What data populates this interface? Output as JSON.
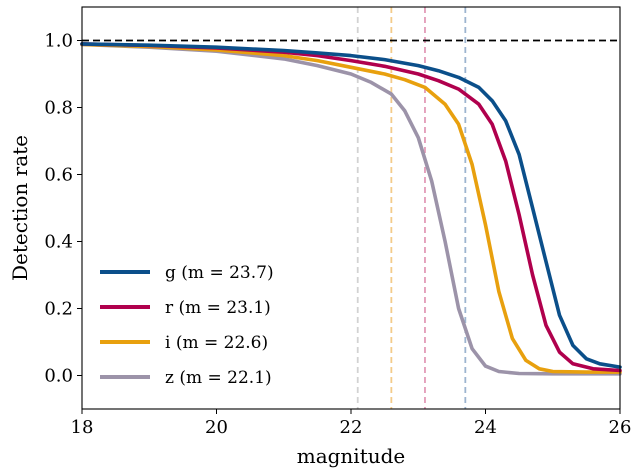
{
  "chart_data": {
    "type": "line",
    "xlabel": "magnitude",
    "ylabel": "Detection rate",
    "xlim": [
      18,
      26
    ],
    "ylim": [
      -0.1,
      1.1
    ],
    "xticks": [
      18,
      20,
      22,
      24,
      26
    ],
    "yticks": [
      0.0,
      0.2,
      0.4,
      0.6,
      0.8,
      1.0
    ],
    "xtick_labels": [
      "18",
      "20",
      "22",
      "24",
      "26"
    ],
    "ytick_labels": [
      "0.0",
      "0.2",
      "0.4",
      "0.6",
      "0.8",
      "1.0"
    ],
    "grid": false,
    "legend_position": "lower-left",
    "reference_line": {
      "y": 1.0,
      "style": "dashed",
      "color": "#000000"
    },
    "series": [
      {
        "name": "g (m = 23.7)",
        "color": "#0b4f8a",
        "limit_color": "#9db4cf",
        "limit": 23.7,
        "x": [
          18,
          19,
          20,
          21,
          21.5,
          22,
          22.5,
          23,
          23.3,
          23.6,
          23.9,
          24.1,
          24.3,
          24.5,
          24.7,
          24.9,
          25.1,
          25.3,
          25.5,
          25.7,
          26
        ],
        "y": [
          0.99,
          0.986,
          0.98,
          0.97,
          0.963,
          0.955,
          0.943,
          0.925,
          0.91,
          0.89,
          0.86,
          0.82,
          0.76,
          0.66,
          0.5,
          0.34,
          0.18,
          0.09,
          0.05,
          0.035,
          0.025
        ]
      },
      {
        "name": "r (m = 23.1)",
        "color": "#b0004d",
        "limit_color": "#e29bb8",
        "limit": 23.1,
        "x": [
          18,
          19,
          20,
          21,
          21.5,
          22,
          22.5,
          23,
          23.3,
          23.6,
          23.9,
          24.1,
          24.3,
          24.5,
          24.7,
          24.9,
          25.1,
          25.3,
          25.6,
          26
        ],
        "y": [
          0.99,
          0.985,
          0.978,
          0.965,
          0.955,
          0.94,
          0.923,
          0.9,
          0.88,
          0.855,
          0.81,
          0.75,
          0.64,
          0.48,
          0.3,
          0.15,
          0.07,
          0.035,
          0.02,
          0.015
        ]
      },
      {
        "name": "i (m = 22.6)",
        "color": "#e8a00e",
        "limit_color": "#f3cb8a",
        "limit": 22.6,
        "x": [
          18,
          19,
          20,
          21,
          21.5,
          22,
          22.5,
          22.8,
          23.1,
          23.4,
          23.6,
          23.8,
          24.0,
          24.2,
          24.4,
          24.6,
          24.8,
          25,
          25.5,
          26
        ],
        "y": [
          0.988,
          0.982,
          0.972,
          0.955,
          0.94,
          0.92,
          0.9,
          0.883,
          0.86,
          0.81,
          0.75,
          0.63,
          0.45,
          0.25,
          0.11,
          0.045,
          0.02,
          0.012,
          0.01,
          0.01
        ]
      },
      {
        "name": "z (m = 22.1)",
        "color": "#9c93a9",
        "limit_color": "#d2d2d2",
        "limit": 22.1,
        "x": [
          18,
          19,
          20,
          21,
          21.5,
          22,
          22.3,
          22.6,
          22.8,
          23.0,
          23.2,
          23.4,
          23.6,
          23.8,
          24.0,
          24.2,
          24.5,
          25,
          26
        ],
        "y": [
          0.988,
          0.98,
          0.968,
          0.945,
          0.925,
          0.9,
          0.875,
          0.84,
          0.79,
          0.71,
          0.58,
          0.4,
          0.2,
          0.08,
          0.028,
          0.012,
          0.006,
          0.005,
          0.005
        ]
      }
    ]
  }
}
